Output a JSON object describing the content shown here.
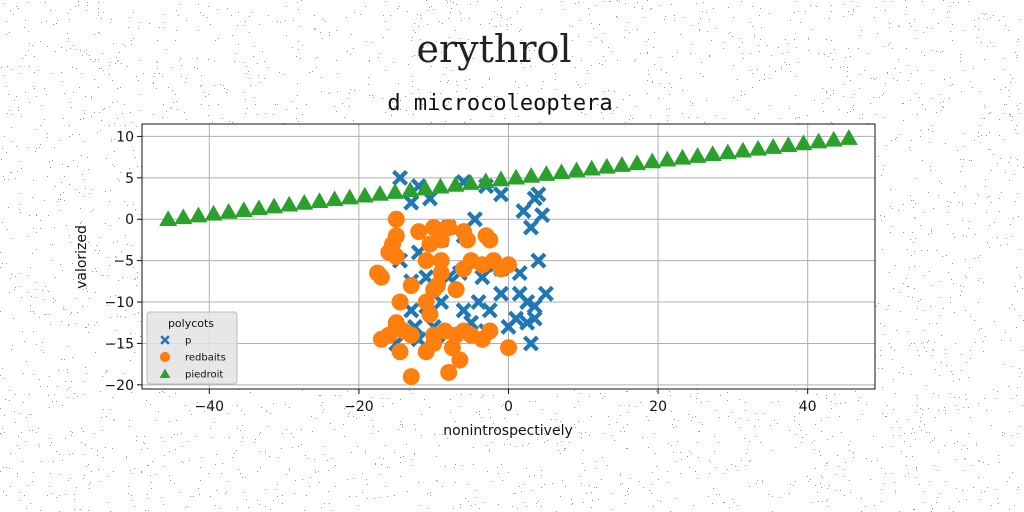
{
  "chart_data": {
    "type": "scatter",
    "suptitle": "erythrol",
    "title": "d microcoleoptera",
    "xlabel": "nonintrospectively",
    "ylabel": "valorized",
    "xlim": [
      -49,
      49
    ],
    "ylim": [
      -20.5,
      11.5
    ],
    "xticks": [
      -40,
      -20,
      0,
      20,
      40
    ],
    "yticks": [
      10,
      5,
      0,
      -5,
      -10,
      -15,
      -20
    ],
    "xtick_labels": [
      "−40",
      "−20",
      "0",
      "20",
      "40"
    ],
    "ytick_labels": [
      "10",
      "5",
      "0",
      "−5",
      "−10",
      "−15",
      "−20"
    ],
    "grid": true,
    "legend": {
      "title": "polycots",
      "position": "lower-left"
    },
    "series": [
      {
        "name": "p",
        "marker": "x",
        "color": "#1f77b4",
        "points": [
          [
            -14.5,
            5
          ],
          [
            -13,
            2
          ],
          [
            -12,
            4
          ],
          [
            -10.5,
            2.5
          ],
          [
            -6,
            4.5
          ],
          [
            -3,
            4
          ],
          [
            -1,
            3
          ],
          [
            -4.5,
            0
          ],
          [
            -8,
            -1
          ],
          [
            -9,
            -2.5
          ],
          [
            -6,
            -2
          ],
          [
            -12,
            -4
          ],
          [
            -14.5,
            -5
          ],
          [
            -10,
            -5
          ],
          [
            -11,
            -7
          ],
          [
            -13,
            -7.5
          ],
          [
            -8,
            -7
          ],
          [
            -6.5,
            -6.5
          ],
          [
            -3,
            -5.5
          ],
          [
            -1,
            -6
          ],
          [
            -3.5,
            -7
          ],
          [
            -1,
            -9
          ],
          [
            -4,
            -10
          ],
          [
            -6,
            -11
          ],
          [
            -9,
            -10
          ],
          [
            -11,
            -10.5
          ],
          [
            -13,
            -11
          ],
          [
            -12.5,
            -13
          ],
          [
            -14,
            -14
          ],
          [
            -10,
            -13
          ],
          [
            -5,
            -12.5
          ],
          [
            -2.5,
            -11
          ],
          [
            0,
            -13
          ],
          [
            1.5,
            -9
          ],
          [
            2.5,
            -10
          ],
          [
            3.5,
            -10.5
          ],
          [
            3.5,
            -12
          ],
          [
            2.5,
            -12.5
          ],
          [
            1,
            -12
          ],
          [
            5,
            -9
          ],
          [
            4,
            -5
          ],
          [
            3,
            -1
          ],
          [
            2,
            1
          ],
          [
            3.5,
            2.5
          ],
          [
            4.5,
            0.5
          ],
          [
            4,
            3
          ],
          [
            -15,
            -15
          ],
          [
            -12,
            -14.5
          ],
          [
            -9.5,
            -14
          ],
          [
            -6,
            -14
          ],
          [
            -3,
            -13.5
          ],
          [
            3,
            -15
          ],
          [
            1.5,
            -6.5
          ]
        ]
      },
      {
        "name": "redbaits",
        "marker": "o",
        "color": "#ff7f0e",
        "points": [
          [
            -15,
            0
          ],
          [
            -15,
            -2
          ],
          [
            -15.5,
            -3
          ],
          [
            -16,
            -4
          ],
          [
            -15,
            -4.5
          ],
          [
            -12,
            -1.5
          ],
          [
            -10,
            -1
          ],
          [
            -9,
            -2.5
          ],
          [
            -10.5,
            -3
          ],
          [
            -8,
            -1
          ],
          [
            -6,
            -1.5
          ],
          [
            -5.5,
            -2.5
          ],
          [
            -3,
            -2
          ],
          [
            -2.5,
            -2.5
          ],
          [
            -11,
            -5
          ],
          [
            -9,
            -5
          ],
          [
            -9,
            -6.5
          ],
          [
            -6,
            -6
          ],
          [
            -5,
            -5
          ],
          [
            -3.5,
            -5.5
          ],
          [
            -2,
            -5
          ],
          [
            -1,
            -6
          ],
          [
            0,
            -5.5
          ],
          [
            -17,
            -7
          ],
          [
            -17.5,
            -6.5
          ],
          [
            -14.5,
            -10
          ],
          [
            -13,
            -8
          ],
          [
            -10,
            -8.5
          ],
          [
            -9.5,
            -8
          ],
          [
            -7,
            -8.5
          ],
          [
            -11,
            -10
          ],
          [
            -10.5,
            -11.5
          ],
          [
            -15,
            -12.5
          ],
          [
            -14,
            -13.5
          ],
          [
            -16,
            -14
          ],
          [
            -15,
            -13
          ],
          [
            -13,
            -14
          ],
          [
            -17,
            -14.5
          ],
          [
            -10,
            -14
          ],
          [
            -8.5,
            -13.5
          ],
          [
            -7,
            -14
          ],
          [
            -6,
            -13.5
          ],
          [
            -5,
            -14
          ],
          [
            -3.5,
            -14.5
          ],
          [
            -2.5,
            -13.5
          ],
          [
            -11,
            -16
          ],
          [
            -10,
            -15
          ],
          [
            -7.5,
            -15.5
          ],
          [
            -6.5,
            -17
          ],
          [
            -8,
            -18.5
          ],
          [
            -13,
            -19
          ],
          [
            0,
            -15.5
          ],
          [
            -14.5,
            -16
          ]
        ]
      },
      {
        "name": "piedroit",
        "marker": "^",
        "color": "#2ca02c",
        "line": {
          "x_start": -45.5,
          "x_end": 45.5,
          "y_start": 0,
          "y_end": 9.8,
          "count": 46
        }
      }
    ]
  }
}
